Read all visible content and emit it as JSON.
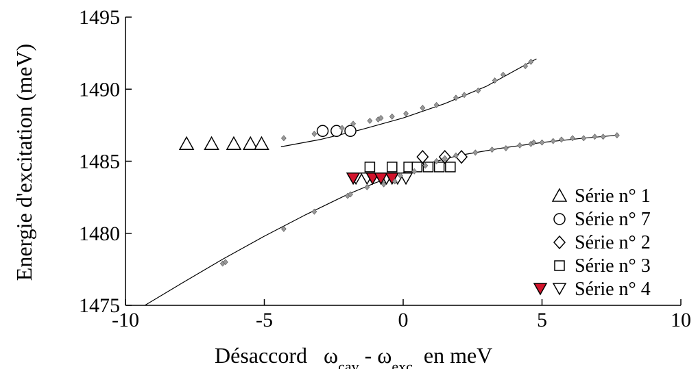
{
  "chart_data": {
    "type": "scatter",
    "title": "",
    "xlabel": "Désaccord",
    "xlabel_parts": [
      {
        "text": "ω",
        "sub": "cav"
      },
      {
        "text": " - ω",
        "sub": "exc"
      },
      {
        "text": "  en meV",
        "sub": ""
      }
    ],
    "ylabel": "Energie d'excitation (meV)",
    "xlim": [
      -10,
      10
    ],
    "ylim": [
      1475,
      1495
    ],
    "xticks": [
      "-10",
      "-5",
      "0",
      "5",
      "10"
    ],
    "yticks": [
      "1475",
      "1480",
      "1485",
      "1490",
      "1495"
    ],
    "grid": false,
    "legend_position": "bottom-right",
    "colors": {
      "axis": "#000000",
      "marker_stroke": "#000000",
      "small_marker_fill": "#999999",
      "filled_triangle": "#d2142c",
      "curve": "#000000"
    },
    "series": [
      {
        "name": "Série n° 1",
        "marker": "triangle-up",
        "points": [
          [
            -7.8,
            1486.2
          ],
          [
            -6.9,
            1486.2
          ],
          [
            -6.1,
            1486.2
          ],
          [
            -5.5,
            1486.2
          ],
          [
            -5.1,
            1486.2
          ]
        ]
      },
      {
        "name": "Série n° 7",
        "marker": "circle",
        "points": [
          [
            -2.9,
            1487.1
          ],
          [
            -2.4,
            1487.1
          ],
          [
            -1.9,
            1487.1
          ]
        ]
      },
      {
        "name": "Série n° 2",
        "marker": "diamond",
        "points": [
          [
            0.7,
            1485.3
          ],
          [
            1.5,
            1485.3
          ],
          [
            2.1,
            1485.3
          ]
        ]
      },
      {
        "name": "Série n° 3",
        "marker": "square",
        "points": [
          [
            -1.2,
            1484.6
          ],
          [
            -0.4,
            1484.6
          ],
          [
            0.2,
            1484.6
          ],
          [
            0.5,
            1484.6
          ],
          [
            0.9,
            1484.6
          ],
          [
            1.3,
            1484.6
          ],
          [
            1.7,
            1484.6
          ]
        ]
      },
      {
        "name": "Série n° 4",
        "marker": "triangle-down",
        "points": [
          [
            -1.7,
            1483.8
          ],
          [
            -1.3,
            1483.8
          ],
          [
            -0.6,
            1483.8
          ],
          [
            -0.2,
            1483.8
          ],
          [
            0.1,
            1483.8
          ]
        ]
      },
      {
        "name": "",
        "marker": "triangle-down-filled",
        "points": [
          [
            -1.8,
            1483.8
          ],
          [
            -1.1,
            1483.8
          ],
          [
            -0.8,
            1483.8
          ],
          [
            -0.4,
            1483.8
          ]
        ]
      },
      {
        "name": "",
        "marker": "small-diamond",
        "points": [
          [
            -4.3,
            1486.6
          ],
          [
            -3.2,
            1486.9
          ],
          [
            -2.2,
            1487.3
          ],
          [
            -1.8,
            1487.6
          ],
          [
            -1.2,
            1487.8
          ],
          [
            -0.9,
            1487.9
          ],
          [
            -0.8,
            1488.0
          ],
          [
            -0.4,
            1488.1
          ],
          [
            0.1,
            1488.3
          ],
          [
            0.7,
            1488.7
          ],
          [
            1.2,
            1488.9
          ],
          [
            1.9,
            1489.4
          ],
          [
            2.2,
            1489.6
          ],
          [
            2.7,
            1489.9
          ],
          [
            3.3,
            1490.6
          ],
          [
            3.6,
            1491.0
          ],
          [
            4.4,
            1491.6
          ],
          [
            4.6,
            1491.9
          ],
          [
            -6.5,
            1477.9
          ],
          [
            -6.4,
            1478.0
          ],
          [
            -4.3,
            1480.3
          ],
          [
            -3.2,
            1481.5
          ],
          [
            -2.0,
            1482.6
          ],
          [
            -1.9,
            1482.7
          ],
          [
            -1.3,
            1483.2
          ],
          [
            -0.7,
            1483.4
          ],
          [
            -0.3,
            1483.6
          ],
          [
            -0.1,
            1484.0
          ],
          [
            0.4,
            1484.3
          ],
          [
            0.8,
            1484.7
          ],
          [
            1.2,
            1485.0
          ],
          [
            1.5,
            1485.2
          ],
          [
            1.9,
            1485.4
          ],
          [
            2.6,
            1485.6
          ],
          [
            3.2,
            1485.8
          ],
          [
            3.7,
            1485.9
          ],
          [
            4.2,
            1486.1
          ],
          [
            4.6,
            1486.2
          ],
          [
            4.7,
            1486.3
          ],
          [
            5.0,
            1486.3
          ],
          [
            5.4,
            1486.4
          ],
          [
            5.7,
            1486.5
          ],
          [
            6.1,
            1486.6
          ],
          [
            6.5,
            1486.6
          ],
          [
            6.9,
            1486.7
          ],
          [
            7.2,
            1486.7
          ],
          [
            7.7,
            1486.8
          ]
        ]
      }
    ],
    "fit_curves": [
      {
        "name": "",
        "points": [
          [
            -4.4,
            1486.0
          ],
          [
            -3.0,
            1486.5
          ],
          [
            -1.5,
            1487.2
          ],
          [
            0.0,
            1488.0
          ],
          [
            1.5,
            1489.0
          ],
          [
            3.0,
            1490.2
          ],
          [
            4.5,
            1491.8
          ],
          [
            4.8,
            1492.1
          ]
        ]
      },
      {
        "name": "",
        "points": [
          [
            -9.3,
            1475.0
          ],
          [
            -8.0,
            1476.5
          ],
          [
            -6.5,
            1478.2
          ],
          [
            -5.0,
            1479.8
          ],
          [
            -3.5,
            1481.3
          ],
          [
            -2.0,
            1482.7
          ],
          [
            -1.0,
            1483.5
          ],
          [
            0.0,
            1484.2
          ],
          [
            1.0,
            1484.9
          ],
          [
            2.0,
            1485.4
          ],
          [
            3.5,
            1485.9
          ],
          [
            5.0,
            1486.3
          ],
          [
            6.5,
            1486.6
          ],
          [
            7.7,
            1486.8
          ]
        ]
      }
    ]
  }
}
